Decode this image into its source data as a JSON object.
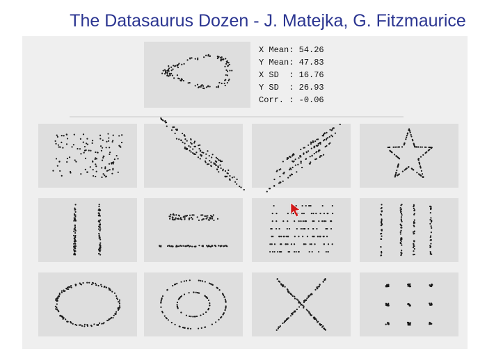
{
  "title": "The Datasaurus Dozen - J. Matejka, G. Fitzmaurice",
  "stats": [
    {
      "label": "X Mean:",
      "value": 54.26
    },
    {
      "label": "Y Mean:",
      "value": 47.83
    },
    {
      "label": "X SD  :",
      "value": 16.76
    },
    {
      "label": "Y SD  :",
      "value": 26.93
    },
    {
      "label": "Corr. :",
      "value": -0.06
    }
  ]
}
